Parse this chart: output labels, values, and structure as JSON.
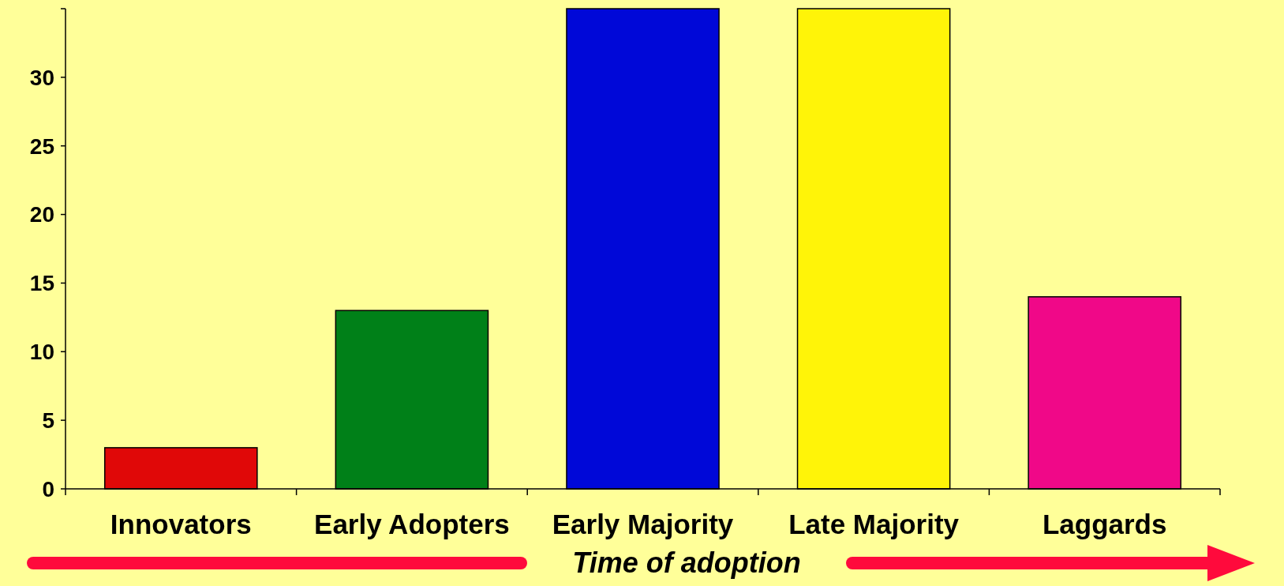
{
  "chart_data": {
    "type": "bar",
    "xlabel": "Time of adoption",
    "categories": [
      "Innovators",
      "Early Adopters",
      "Early Majority",
      "Late Majority",
      "Laggards"
    ],
    "values": [
      3,
      13,
      35,
      35,
      14
    ],
    "colors": [
      "#e00808",
      "#008018",
      "#0008d8",
      "#fff408",
      "#f00888"
    ],
    "ylim": [
      0,
      35
    ],
    "yticks": [
      0,
      5,
      10,
      15,
      20,
      25,
      30,
      {
        "value": 35,
        "label": null
      }
    ],
    "grid": false
  }
}
